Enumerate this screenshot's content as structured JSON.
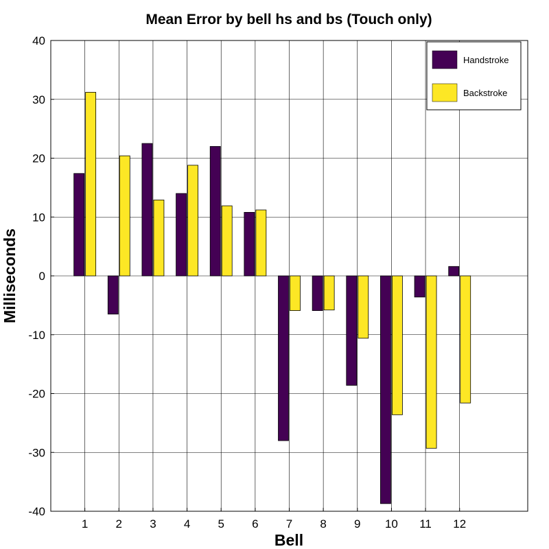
{
  "colors": {
    "handstroke": "#440154",
    "backstroke": "#fde725",
    "grid": "#000000",
    "axis": "#000000"
  },
  "chart_data": {
    "type": "bar",
    "title": "Mean Error by bell hs and bs (Touch only)",
    "xlabel": "Bell",
    "ylabel": "Milliseconds",
    "ylim": [
      -40,
      40
    ],
    "xlim": [
      0,
      14
    ],
    "yticks": [
      -40,
      -30,
      -20,
      -10,
      0,
      10,
      20,
      30,
      40
    ],
    "grid": true,
    "legend_position": "top-right",
    "categories": [
      "1",
      "2",
      "3",
      "4",
      "5",
      "6",
      "7",
      "8",
      "9",
      "10",
      "11",
      "12"
    ],
    "series": [
      {
        "name": "Handstroke",
        "values": [
          17.4,
          -6.5,
          22.5,
          14.0,
          22.0,
          10.8,
          -28.0,
          -5.9,
          -18.6,
          -38.7,
          -3.6,
          1.6
        ]
      },
      {
        "name": "Backstroke",
        "values": [
          31.2,
          20.4,
          12.9,
          18.8,
          11.9,
          11.2,
          -5.9,
          -5.8,
          -10.6,
          -23.6,
          -29.3,
          -21.6
        ]
      }
    ]
  }
}
